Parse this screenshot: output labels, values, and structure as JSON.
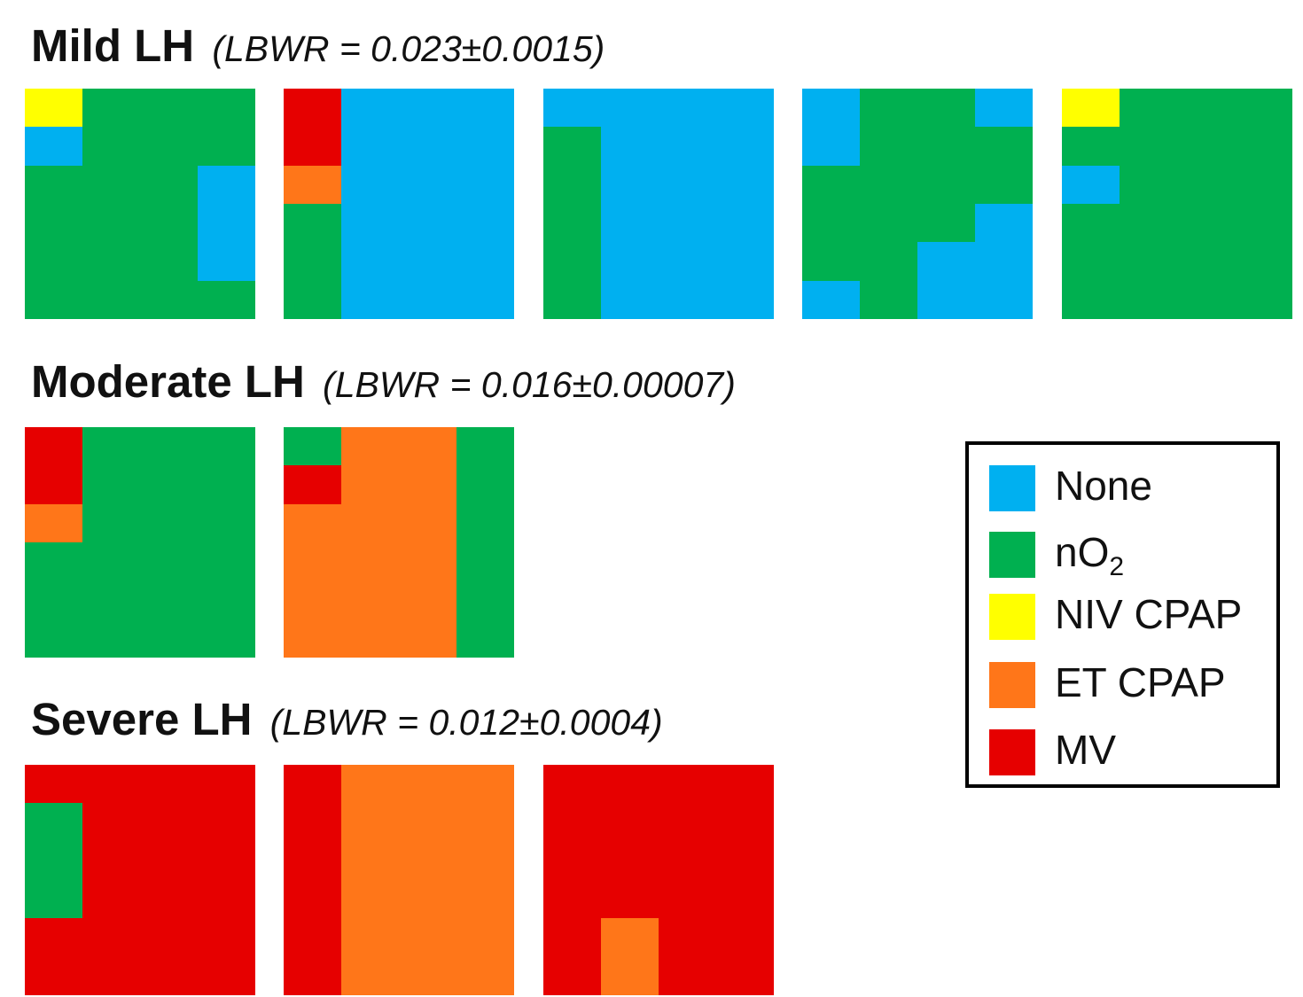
{
  "chart_data": {
    "type": "heatmap",
    "colors": {
      "None": "#00b0f0",
      "nO2": "#00b050",
      "NIV CPAP": "#ffff00",
      "ET CPAP": "#ff7619",
      "MV": "#e60000"
    },
    "legend": {
      "placement": "right",
      "items": [
        {
          "key": "None",
          "label": "None",
          "label_main": "None",
          "label_sub": ""
        },
        {
          "key": "nO2",
          "label": "nO2",
          "label_main": "nO",
          "label_sub": "2"
        },
        {
          "key": "NIV CPAP",
          "label": "NIV CPAP",
          "label_main": "NIV CPAP",
          "label_sub": ""
        },
        {
          "key": "ET CPAP",
          "label": "ET CPAP",
          "label_main": "ET CPAP",
          "label_sub": ""
        },
        {
          "key": "MV",
          "label": "MV",
          "label_main": "MV",
          "label_sub": ""
        }
      ]
    },
    "groups": [
      {
        "title": "Mild LH",
        "subtitle": "(LBWR = 0.023±0.0015)",
        "grids": [
          [
            [
              "NIV CPAP",
              "nO2",
              "nO2",
              "nO2"
            ],
            [
              "None",
              "nO2",
              "nO2",
              "nO2"
            ],
            [
              "nO2",
              "nO2",
              "nO2",
              "None"
            ],
            [
              "nO2",
              "nO2",
              "nO2",
              "None"
            ],
            [
              "nO2",
              "nO2",
              "nO2",
              "None"
            ],
            [
              "nO2",
              "nO2",
              "nO2",
              "nO2"
            ]
          ],
          [
            [
              "MV",
              "None",
              "None",
              "None"
            ],
            [
              "MV",
              "None",
              "None",
              "None"
            ],
            [
              "ET CPAP",
              "None",
              "None",
              "None"
            ],
            [
              "nO2",
              "None",
              "None",
              "None"
            ],
            [
              "nO2",
              "None",
              "None",
              "None"
            ],
            [
              "nO2",
              "None",
              "None",
              "None"
            ]
          ],
          [
            [
              "None",
              "None",
              "None",
              "None"
            ],
            [
              "nO2",
              "None",
              "None",
              "None"
            ],
            [
              "nO2",
              "None",
              "None",
              "None"
            ],
            [
              "nO2",
              "None",
              "None",
              "None"
            ],
            [
              "nO2",
              "None",
              "None",
              "None"
            ],
            [
              "nO2",
              "None",
              "None",
              "None"
            ]
          ],
          [
            [
              "None",
              "nO2",
              "nO2",
              "None"
            ],
            [
              "None",
              "nO2",
              "nO2",
              "nO2"
            ],
            [
              "nO2",
              "nO2",
              "nO2",
              "nO2"
            ],
            [
              "nO2",
              "nO2",
              "nO2",
              "None"
            ],
            [
              "nO2",
              "nO2",
              "None",
              "None"
            ],
            [
              "None",
              "nO2",
              "None",
              "None"
            ]
          ],
          [
            [
              "NIV CPAP",
              "nO2",
              "nO2",
              "nO2"
            ],
            [
              "nO2",
              "nO2",
              "nO2",
              "nO2"
            ],
            [
              "None",
              "nO2",
              "nO2",
              "nO2"
            ],
            [
              "nO2",
              "nO2",
              "nO2",
              "nO2"
            ],
            [
              "nO2",
              "nO2",
              "nO2",
              "nO2"
            ],
            [
              "nO2",
              "nO2",
              "nO2",
              "nO2"
            ]
          ]
        ]
      },
      {
        "title": "Moderate LH",
        "subtitle": "(LBWR = 0.016±0.00007)",
        "grids": [
          [
            [
              "MV",
              "nO2",
              "nO2",
              "nO2"
            ],
            [
              "MV",
              "nO2",
              "nO2",
              "nO2"
            ],
            [
              "ET CPAP",
              "nO2",
              "nO2",
              "nO2"
            ],
            [
              "nO2",
              "nO2",
              "nO2",
              "nO2"
            ],
            [
              "nO2",
              "nO2",
              "nO2",
              "nO2"
            ],
            [
              "nO2",
              "nO2",
              "nO2",
              "nO2"
            ]
          ],
          [
            [
              "nO2",
              "ET CPAP",
              "ET CPAP",
              "nO2"
            ],
            [
              "MV",
              "ET CPAP",
              "ET CPAP",
              "nO2"
            ],
            [
              "ET CPAP",
              "ET CPAP",
              "ET CPAP",
              "nO2"
            ],
            [
              "ET CPAP",
              "ET CPAP",
              "ET CPAP",
              "nO2"
            ],
            [
              "ET CPAP",
              "ET CPAP",
              "ET CPAP",
              "nO2"
            ],
            [
              "ET CPAP",
              "ET CPAP",
              "ET CPAP",
              "nO2"
            ]
          ]
        ]
      },
      {
        "title": "Severe LH",
        "subtitle": "(LBWR = 0.012±0.0004)",
        "grids": [
          [
            [
              "MV",
              "MV",
              "MV",
              "MV"
            ],
            [
              "nO2",
              "MV",
              "MV",
              "MV"
            ],
            [
              "nO2",
              "MV",
              "MV",
              "MV"
            ],
            [
              "nO2",
              "MV",
              "MV",
              "MV"
            ],
            [
              "MV",
              "MV",
              "MV",
              "MV"
            ],
            [
              "MV",
              "MV",
              "MV",
              "MV"
            ]
          ],
          [
            [
              "MV",
              "ET CPAP",
              "ET CPAP",
              "ET CPAP"
            ],
            [
              "MV",
              "ET CPAP",
              "ET CPAP",
              "ET CPAP"
            ],
            [
              "MV",
              "ET CPAP",
              "ET CPAP",
              "ET CPAP"
            ],
            [
              "MV",
              "ET CPAP",
              "ET CPAP",
              "ET CPAP"
            ],
            [
              "MV",
              "ET CPAP",
              "ET CPAP",
              "ET CPAP"
            ],
            [
              "MV",
              "ET CPAP",
              "ET CPAP",
              "ET CPAP"
            ]
          ],
          [
            [
              "MV",
              "MV",
              "MV",
              "MV"
            ],
            [
              "MV",
              "MV",
              "MV",
              "MV"
            ],
            [
              "MV",
              "MV",
              "MV",
              "MV"
            ],
            [
              "MV",
              "MV",
              "MV",
              "MV"
            ],
            [
              "MV",
              "ET CPAP",
              "MV",
              "MV"
            ],
            [
              "MV",
              "ET CPAP",
              "MV",
              "MV"
            ]
          ]
        ]
      }
    ]
  }
}
